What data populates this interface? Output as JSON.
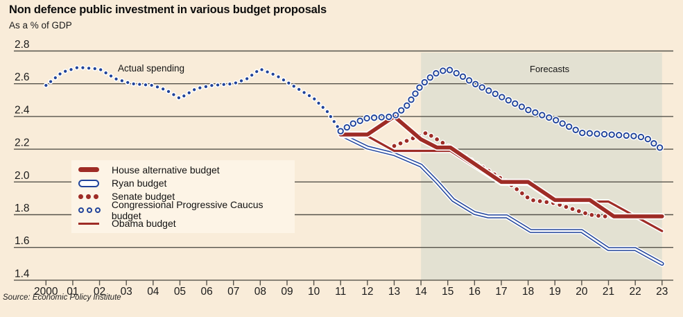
{
  "title": "Non defence public investment in various budget proposals",
  "subtitle": "As a % of GDP",
  "source": "Source: Economic Policy Institute",
  "colors": {
    "background": "#f9ecd9",
    "legend_bg": "#fdf4e6",
    "forecast_band": "#e3e1d2",
    "grid": "#55524a",
    "text": "#1a1a1a",
    "red": "#9e2c26",
    "blue": "#20439a",
    "halo": "#ffffff"
  },
  "legend": {
    "items": [
      {
        "label": "House alternative budget",
        "series": "house"
      },
      {
        "label": "Ryan budget",
        "series": "ryan"
      },
      {
        "label": "Senate budget",
        "series": "senate"
      },
      {
        "label": "Congressional Progressive Caucus budget",
        "series": "cpc"
      },
      {
        "label": "Obama budget",
        "series": "obama"
      }
    ]
  },
  "chart_data": {
    "type": "line",
    "title": "Non defence public investment in various budget proposals",
    "ylabel": "As a % of GDP",
    "ylim": [
      1.4,
      2.8
    ],
    "xlim": [
      2000,
      2023
    ],
    "grid": true,
    "forecast_start": 2014,
    "annotations": {
      "actual_spending": "Actual spending",
      "forecasts": "Forecasts"
    },
    "y_ticks": [
      "2.8",
      "2.6",
      "2.4",
      "2.2",
      "2.0",
      "1.8",
      "1.6",
      "1.4"
    ],
    "x_ticks": [
      "2000",
      "01",
      "02",
      "03",
      "04",
      "05",
      "06",
      "07",
      "08",
      "09",
      "10",
      "11",
      "12",
      "13",
      "14",
      "15",
      "16",
      "17",
      "18",
      "19",
      "20",
      "21",
      "22",
      "23"
    ],
    "series": [
      {
        "id": "actual",
        "name": "Actual spending",
        "style": "small-dots",
        "color": "blue",
        "points": [
          [
            2000,
            2.59
          ],
          [
            2000.6,
            2.67
          ],
          [
            2001.2,
            2.7
          ],
          [
            2002,
            2.69
          ],
          [
            2002.6,
            2.63
          ],
          [
            2003.2,
            2.6
          ],
          [
            2004,
            2.59
          ],
          [
            2004.5,
            2.56
          ],
          [
            2005,
            2.51
          ],
          [
            2005.6,
            2.57
          ],
          [
            2006.2,
            2.59
          ],
          [
            2007,
            2.6
          ],
          [
            2007.5,
            2.63
          ],
          [
            2008,
            2.69
          ],
          [
            2008.6,
            2.65
          ],
          [
            2009,
            2.61
          ],
          [
            2009.6,
            2.55
          ],
          [
            2010,
            2.51
          ],
          [
            2010.5,
            2.43
          ],
          [
            2011,
            2.31
          ]
        ]
      },
      {
        "id": "ryan",
        "name": "Ryan budget",
        "style": "outline-line",
        "color": "blue",
        "points": [
          [
            2011,
            2.29
          ],
          [
            2012,
            2.21
          ],
          [
            2013,
            2.17
          ],
          [
            2014,
            2.1
          ],
          [
            2014.6,
            2.0
          ],
          [
            2015.2,
            1.89
          ],
          [
            2016,
            1.81
          ],
          [
            2016.5,
            1.79
          ],
          [
            2017.2,
            1.79
          ],
          [
            2018.1,
            1.7
          ],
          [
            2020,
            1.7
          ],
          [
            2021,
            1.59
          ],
          [
            2022,
            1.59
          ],
          [
            2023,
            1.5
          ]
        ]
      },
      {
        "id": "senate",
        "name": "Senate budget",
        "style": "big-dots",
        "color": "red",
        "points": [
          [
            2013,
            2.22
          ],
          [
            2014.2,
            2.3
          ],
          [
            2015.1,
            2.21
          ],
          [
            2017.3,
            1.99
          ],
          [
            2018.1,
            1.89
          ],
          [
            2019,
            1.87
          ],
          [
            2020.3,
            1.8
          ],
          [
            2020.8,
            1.79
          ],
          [
            2022.2,
            1.79
          ]
        ]
      },
      {
        "id": "obama",
        "name": "Obama budget",
        "style": "thin-line",
        "color": "red",
        "points": [
          [
            2011,
            2.28
          ],
          [
            2012,
            2.28
          ],
          [
            2013,
            2.19
          ],
          [
            2015.1,
            2.19
          ],
          [
            2017,
            1.99
          ],
          [
            2018,
            1.99
          ],
          [
            2019,
            1.88
          ],
          [
            2021,
            1.88
          ],
          [
            2023,
            1.7
          ]
        ]
      },
      {
        "id": "house",
        "name": "House alternative budget",
        "style": "thick-line",
        "color": "red",
        "points": [
          [
            2011,
            2.29
          ],
          [
            2012,
            2.29
          ],
          [
            2013,
            2.4
          ],
          [
            2014,
            2.26
          ],
          [
            2014.6,
            2.21
          ],
          [
            2015.1,
            2.21
          ],
          [
            2017,
            2.0
          ],
          [
            2018,
            2.0
          ],
          [
            2019,
            1.89
          ],
          [
            2020.3,
            1.89
          ],
          [
            2021.2,
            1.79
          ],
          [
            2023,
            1.79
          ]
        ]
      },
      {
        "id": "cpc",
        "name": "Congressional Progressive Caucus budget",
        "style": "circles",
        "color": "blue",
        "points": [
          [
            2011,
            2.31
          ],
          [
            2011.5,
            2.36
          ],
          [
            2012,
            2.39
          ],
          [
            2013,
            2.4
          ],
          [
            2013.5,
            2.47
          ],
          [
            2014,
            2.59
          ],
          [
            2014.5,
            2.66
          ],
          [
            2015,
            2.69
          ],
          [
            2015.5,
            2.65
          ],
          [
            2016,
            2.6
          ],
          [
            2017,
            2.52
          ],
          [
            2018,
            2.44
          ],
          [
            2019,
            2.38
          ],
          [
            2019.5,
            2.34
          ],
          [
            2020,
            2.3
          ],
          [
            2021,
            2.29
          ],
          [
            2022,
            2.28
          ],
          [
            2022.4,
            2.27
          ],
          [
            2023,
            2.2
          ]
        ]
      }
    ]
  }
}
